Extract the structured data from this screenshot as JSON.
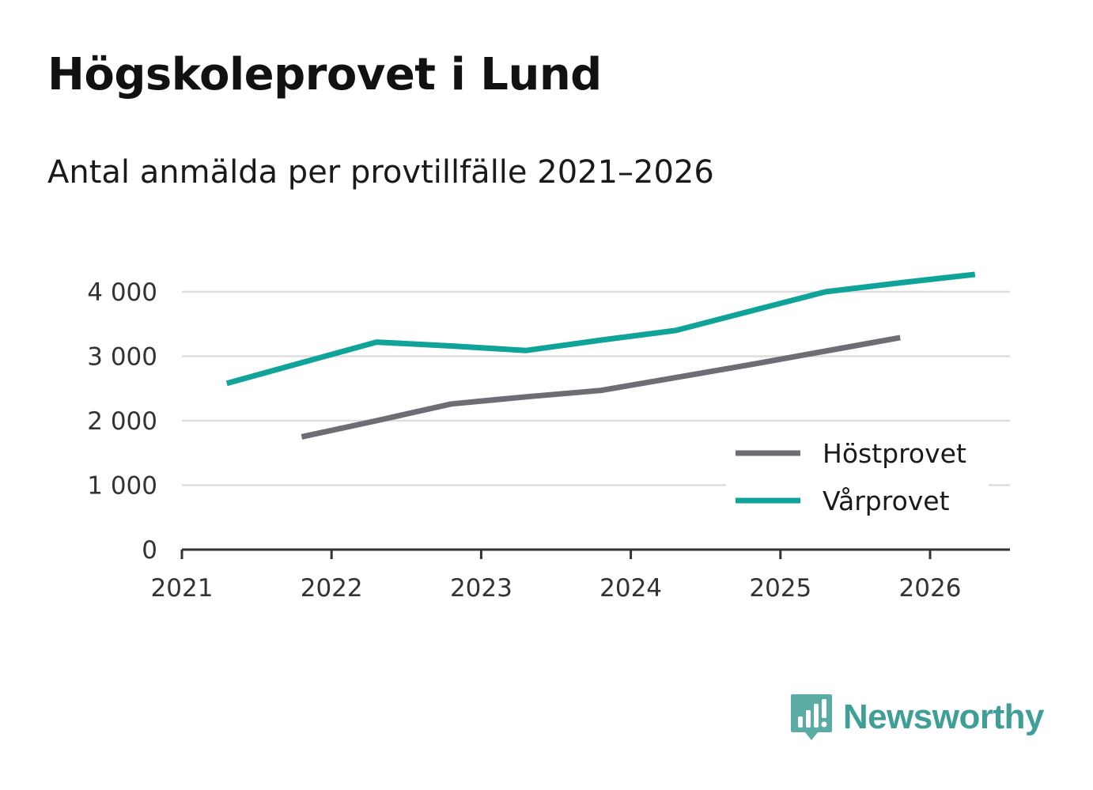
{
  "header": {
    "title": "Högskoleprovet i Lund",
    "subtitle": "Antal anmälda per provtillfälle 2021–2026"
  },
  "brand": {
    "name": "Newsworthy",
    "color": "#3f9e96",
    "icon": "bar-chart-speech-bubble-icon"
  },
  "chart_data": {
    "type": "line",
    "title": "Högskoleprovet i Lund",
    "subtitle": "Antal anmälda per provtillfälle 2021–2026",
    "xlabel": "",
    "ylabel": "",
    "xlim": [
      2021,
      2026.55
    ],
    "ylim": [
      0,
      4300
    ],
    "x_ticks": [
      2021,
      2022,
      2023,
      2024,
      2025,
      2026
    ],
    "x_tick_labels": [
      "2021",
      "2022",
      "2023",
      "2024",
      "2025",
      "2026"
    ],
    "y_ticks": [
      0,
      1000,
      2000,
      3000,
      4000
    ],
    "y_tick_labels": [
      "0",
      "1 000",
      "2 000",
      "3 000",
      "4 000"
    ],
    "grid": true,
    "legend_position": "bottom-right",
    "series": [
      {
        "name": "Höstprovet",
        "color": "#6e6d74",
        "x": [
          2021.8,
          2022.3,
          2022.8,
          2023.3,
          2023.8,
          2024.3,
          2024.8,
          2025.3,
          2025.8
        ],
        "y": [
          1750,
          2000,
          2260,
          2370,
          2470,
          2670,
          2870,
          3080,
          3290
        ]
      },
      {
        "name": "Vårprovet",
        "color": "#10a39a",
        "x": [
          2021.3,
          2021.8,
          2022.3,
          2022.8,
          2023.3,
          2023.8,
          2024.3,
          2024.8,
          2025.3,
          2025.8,
          2026.3
        ],
        "y": [
          2580,
          2900,
          3220,
          3160,
          3090,
          3250,
          3400,
          3700,
          4000,
          4140,
          4270
        ]
      }
    ]
  }
}
